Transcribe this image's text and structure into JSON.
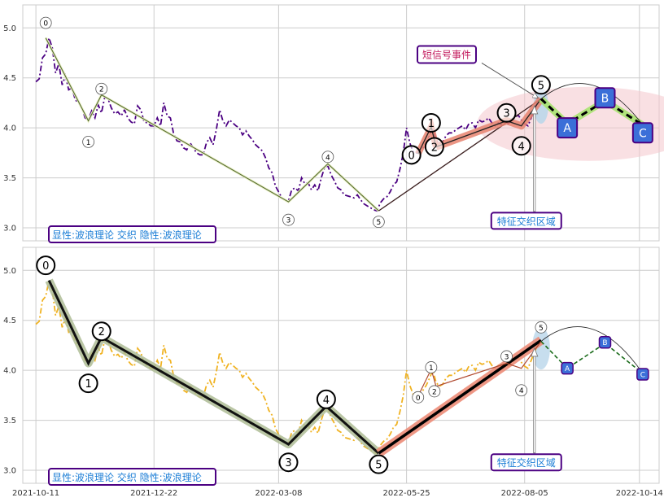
{
  "chart_data": [
    {
      "type": "line",
      "panel": "top",
      "ylim": [
        2.87,
        5.23
      ],
      "yticks": [
        "3.0",
        "3.5",
        "4.0",
        "4.5",
        "5.0"
      ],
      "ytick_values": [
        3.0,
        3.5,
        4.0,
        4.5,
        5.0
      ],
      "price_series": {
        "color": "#4b0082",
        "style": "dash-dot",
        "points": [
          [
            "2021-10-11",
            4.46
          ],
          [
            "2021-10-13",
            4.49
          ],
          [
            "2021-10-15",
            4.7
          ],
          [
            "2021-10-17",
            4.74
          ],
          [
            "2021-10-19",
            4.9
          ],
          [
            "2021-10-21",
            4.8
          ],
          [
            "2021-10-23",
            4.55
          ],
          [
            "2021-10-25",
            4.64
          ],
          [
            "2021-10-27",
            4.43
          ],
          [
            "2021-10-29",
            4.52
          ],
          [
            "2021-10-31",
            4.38
          ],
          [
            "2021-11-02",
            4.4
          ],
          [
            "2021-11-04",
            4.28
          ],
          [
            "2021-11-06",
            4.25
          ],
          [
            "2021-11-08",
            4.2
          ],
          [
            "2021-11-10",
            4.1
          ],
          [
            "2021-11-12",
            4.08
          ],
          [
            "2021-11-14",
            4.17
          ],
          [
            "2021-11-16",
            4.1
          ],
          [
            "2021-11-18",
            4.23
          ],
          [
            "2021-11-20",
            4.15
          ],
          [
            "2021-11-22",
            4.31
          ],
          [
            "2021-11-24",
            4.29
          ],
          [
            "2021-11-26",
            4.2
          ],
          [
            "2021-11-28",
            4.14
          ],
          [
            "2021-11-30",
            4.16
          ],
          [
            "2021-12-02",
            4.12
          ],
          [
            "2021-12-04",
            4.18
          ],
          [
            "2021-12-06",
            4.1
          ],
          [
            "2021-12-08",
            4.06
          ],
          [
            "2021-12-10",
            4.04
          ],
          [
            "2021-12-12",
            4.22
          ],
          [
            "2021-12-14",
            4.18
          ],
          [
            "2021-12-16",
            4.06
          ],
          [
            "2021-12-18",
            4.05
          ],
          [
            "2021-12-20",
            4.02
          ],
          [
            "2021-12-22",
            4.02
          ],
          [
            "2021-12-24",
            4.1
          ],
          [
            "2021-12-26",
            4.02
          ],
          [
            "2021-12-28",
            4.25
          ],
          [
            "2021-12-30",
            4.12
          ],
          [
            "2022-01-01",
            4.1
          ],
          [
            "2022-01-03",
            3.94
          ],
          [
            "2022-01-05",
            3.87
          ],
          [
            "2022-01-07",
            3.86
          ],
          [
            "2022-01-09",
            3.8
          ],
          [
            "2022-01-11",
            3.78
          ],
          [
            "2022-01-13",
            3.85
          ],
          [
            "2022-01-15",
            3.8
          ],
          [
            "2022-01-17",
            3.75
          ],
          [
            "2022-01-19",
            3.73
          ],
          [
            "2022-01-21",
            3.73
          ],
          [
            "2022-01-23",
            3.85
          ],
          [
            "2022-01-25",
            3.9
          ],
          [
            "2022-01-27",
            3.83
          ],
          [
            "2022-01-29",
            3.98
          ],
          [
            "2022-01-31",
            4.18
          ],
          [
            "2022-02-02",
            4.07
          ],
          [
            "2022-02-04",
            4.02
          ],
          [
            "2022-02-06",
            4.08
          ],
          [
            "2022-02-08",
            4.05
          ],
          [
            "2022-02-10",
            4.02
          ],
          [
            "2022-02-12",
            4.0
          ],
          [
            "2022-02-14",
            3.93
          ],
          [
            "2022-02-16",
            3.97
          ],
          [
            "2022-02-18",
            3.92
          ],
          [
            "2022-02-20",
            3.88
          ],
          [
            "2022-02-22",
            3.83
          ],
          [
            "2022-02-24",
            3.8
          ],
          [
            "2022-02-26",
            3.77
          ],
          [
            "2022-02-28",
            3.7
          ],
          [
            "2022-03-02",
            3.6
          ],
          [
            "2022-03-04",
            3.55
          ],
          [
            "2022-03-06",
            3.42
          ],
          [
            "2022-03-08",
            3.36
          ],
          [
            "2022-03-10",
            3.3
          ],
          [
            "2022-03-12",
            3.28
          ],
          [
            "2022-03-14",
            3.27
          ],
          [
            "2022-03-16",
            3.38
          ],
          [
            "2022-03-18",
            3.4
          ],
          [
            "2022-03-20",
            3.37
          ],
          [
            "2022-03-22",
            3.5
          ],
          [
            "2022-03-24",
            3.44
          ],
          [
            "2022-03-26",
            3.45
          ],
          [
            "2022-03-28",
            3.38
          ],
          [
            "2022-03-30",
            3.43
          ],
          [
            "2022-04-01",
            3.37
          ],
          [
            "2022-04-03",
            3.5
          ],
          [
            "2022-04-05",
            3.6
          ],
          [
            "2022-04-07",
            3.62
          ],
          [
            "2022-04-09",
            3.53
          ],
          [
            "2022-04-11",
            3.47
          ],
          [
            "2022-04-13",
            3.4
          ],
          [
            "2022-04-15",
            3.38
          ],
          [
            "2022-04-17",
            3.33
          ],
          [
            "2022-04-19",
            3.32
          ],
          [
            "2022-04-21",
            3.31
          ],
          [
            "2022-04-23",
            3.3
          ],
          [
            "2022-04-25",
            3.33
          ],
          [
            "2022-04-27",
            3.28
          ],
          [
            "2022-04-29",
            3.24
          ],
          [
            "2022-05-01",
            3.22
          ],
          [
            "2022-05-03",
            3.2
          ],
          [
            "2022-05-05",
            3.18
          ],
          [
            "2022-05-07",
            3.17
          ],
          [
            "2022-05-09",
            3.25
          ],
          [
            "2022-05-11",
            3.29
          ],
          [
            "2022-05-13",
            3.31
          ],
          [
            "2022-05-15",
            3.36
          ],
          [
            "2022-05-17",
            3.43
          ],
          [
            "2022-05-19",
            3.46
          ],
          [
            "2022-05-21",
            3.59
          ],
          [
            "2022-05-23",
            3.75
          ],
          [
            "2022-05-25",
            4.0
          ],
          [
            "2022-05-27",
            3.85
          ],
          [
            "2022-05-29",
            3.76
          ],
          [
            "2022-05-31",
            3.75
          ],
          [
            "2022-06-02",
            3.78
          ],
          [
            "2022-06-04",
            3.8
          ],
          [
            "2022-06-06",
            3.85
          ],
          [
            "2022-06-08",
            3.92
          ],
          [
            "2022-06-10",
            4.0
          ],
          [
            "2022-06-12",
            3.88
          ],
          [
            "2022-06-14",
            3.84
          ],
          [
            "2022-06-16",
            3.86
          ],
          [
            "2022-06-18",
            3.92
          ],
          [
            "2022-06-20",
            3.95
          ],
          [
            "2022-06-22",
            3.95
          ],
          [
            "2022-06-24",
            3.98
          ],
          [
            "2022-06-26",
            4.0
          ],
          [
            "2022-06-28",
            4.02
          ],
          [
            "2022-06-30",
            3.98
          ],
          [
            "2022-07-02",
            4.04
          ],
          [
            "2022-07-04",
            4.05
          ],
          [
            "2022-07-06",
            4.0
          ],
          [
            "2022-07-08",
            4.08
          ],
          [
            "2022-07-10",
            4.06
          ],
          [
            "2022-07-12",
            4.07
          ],
          [
            "2022-07-14",
            4.1
          ],
          [
            "2022-07-16",
            4.05
          ],
          [
            "2022-07-18",
            4.02
          ],
          [
            "2022-07-20",
            4.05
          ],
          [
            "2022-07-22",
            4.03
          ],
          [
            "2022-07-24",
            4.06
          ],
          [
            "2022-07-26",
            4.04
          ],
          [
            "2022-07-28",
            4.08
          ],
          [
            "2022-07-30",
            4.1
          ],
          [
            "2022-08-01",
            4.13
          ],
          [
            "2022-08-03",
            4.08
          ],
          [
            "2022-08-05",
            4.04
          ],
          [
            "2022-08-07",
            4.02
          ],
          [
            "2022-08-09",
            4.1
          ],
          [
            "2022-08-11",
            4.18
          ],
          [
            "2022-08-13",
            4.26
          ],
          [
            "2022-08-15",
            4.29
          ]
        ]
      },
      "wave_line": {
        "color": "#556b2f",
        "points": [
          [
            "2021-10-17",
            4.9
          ],
          [
            "2021-11-12",
            4.07
          ],
          [
            "2021-11-20",
            4.33
          ],
          [
            "2022-03-14",
            3.26
          ],
          [
            "2022-04-07",
            3.64
          ],
          [
            "2022-05-08",
            3.17
          ]
        ]
      },
      "wave_labels": [
        {
          "text": "0",
          "x": "2021-10-17",
          "y": 5.05,
          "size": "small"
        },
        {
          "text": "1",
          "x": "2021-11-12",
          "y": 3.86,
          "size": "small"
        },
        {
          "text": "2",
          "x": "2021-11-20",
          "y": 4.39,
          "size": "small"
        },
        {
          "text": "3",
          "x": "2022-03-14",
          "y": 3.08,
          "size": "small"
        },
        {
          "text": "4",
          "x": "2022-04-07",
          "y": 3.71,
          "size": "small"
        },
        {
          "text": "5",
          "x": "2022-05-08",
          "y": 3.06,
          "size": "small"
        }
      ],
      "short_waves": {
        "points": [
          [
            "2022-06-01",
            3.74
          ],
          [
            "2022-06-09",
            4.01
          ],
          [
            "2022-06-12",
            3.81
          ],
          [
            "2022-07-25",
            4.07
          ],
          [
            "2022-08-03",
            4.02
          ],
          [
            "2022-08-15",
            4.29
          ]
        ],
        "labels": [
          {
            "text": "0",
            "x": "2022-05-28",
            "y": 3.73
          },
          {
            "text": "1",
            "x": "2022-06-09",
            "y": 4.05
          },
          {
            "text": "2",
            "x": "2022-06-11",
            "y": 3.81
          },
          {
            "text": "3",
            "x": "2022-07-25",
            "y": 4.15
          },
          {
            "text": "4",
            "x": "2022-08-03",
            "y": 3.82
          },
          {
            "text": "5",
            "x": "2022-08-15",
            "y": 4.43
          }
        ]
      },
      "projection": {
        "points": [
          [
            "2022-08-15",
            4.29
          ],
          [
            "2022-08-31",
            4.04
          ],
          [
            "2022-09-23",
            4.27
          ],
          [
            "2022-10-16",
            4.03
          ]
        ],
        "labels": [
          {
            "text": "A",
            "x": "2022-08-31",
            "y": 4.0
          },
          {
            "text": "B",
            "x": "2022-09-23",
            "y": 4.3
          },
          {
            "text": "C",
            "x": "2022-10-16",
            "y": 3.95
          }
        ]
      },
      "zone_ellipse": {
        "cx": "2022-09-13",
        "cy": 4.04,
        "rx_days": 68,
        "ry": 0.37
      },
      "annotations": {
        "event_text": "短信号事件",
        "event_anchor": {
          "x": "2022-06-18",
          "y": 4.73
        },
        "zone_text": "特征交织区域",
        "zone_anchor": {
          "x": "2022-08-07",
          "y": 3.07
        },
        "legend_text": "显性:波浪理论 交织 隐性:波浪理论"
      }
    },
    {
      "type": "line",
      "panel": "bottom",
      "ylim": [
        2.87,
        5.23
      ],
      "yticks": [
        "3.0",
        "3.5",
        "4.0",
        "4.5",
        "5.0"
      ],
      "ytick_values": [
        3.0,
        3.5,
        4.0,
        4.5,
        5.0
      ],
      "price_series": {
        "color": "#f0b323",
        "style": "dash-dot",
        "same_as_top": true
      },
      "wave_line": {
        "color": "#8fa97a",
        "points": [
          [
            "2021-10-19",
            4.9
          ],
          [
            "2021-11-12",
            4.07
          ],
          [
            "2021-11-20",
            4.33
          ],
          [
            "2022-03-14",
            3.26
          ],
          [
            "2022-04-06",
            3.64
          ],
          [
            "2022-05-08",
            3.17
          ]
        ]
      },
      "wave_labels": [
        {
          "text": "0",
          "x": "2021-10-17",
          "y": 5.05,
          "size": "large"
        },
        {
          "text": "1",
          "x": "2021-11-12",
          "y": 3.87,
          "size": "large"
        },
        {
          "text": "2",
          "x": "2021-11-20",
          "y": 4.39,
          "size": "large"
        },
        {
          "text": "3",
          "x": "2022-03-14",
          "y": 3.08,
          "size": "large"
        },
        {
          "text": "4",
          "x": "2022-04-06",
          "y": 3.71,
          "size": "large"
        },
        {
          "text": "5",
          "x": "2022-05-08",
          "y": 3.06,
          "size": "large"
        }
      ],
      "trend_line": {
        "points": [
          [
            "2022-05-08",
            3.17
          ],
          [
            "2022-08-15",
            4.3
          ]
        ]
      },
      "short_waves": {
        "points": [
          [
            "2022-06-01",
            3.74
          ],
          [
            "2022-06-09",
            4.01
          ],
          [
            "2022-06-12",
            3.84
          ],
          [
            "2022-07-25",
            4.07
          ],
          [
            "2022-08-03",
            4.02
          ],
          [
            "2022-08-15",
            4.29
          ]
        ],
        "labels": [
          {
            "text": "0",
            "x": "2022-06-01",
            "y": 3.73
          },
          {
            "text": "1",
            "x": "2022-06-09",
            "y": 4.03
          },
          {
            "text": "2",
            "x": "2022-06-11",
            "y": 3.79
          },
          {
            "text": "3",
            "x": "2022-07-25",
            "y": 4.14
          },
          {
            "text": "4",
            "x": "2022-08-03",
            "y": 3.8
          },
          {
            "text": "5",
            "x": "2022-08-15",
            "y": 4.43
          }
        ]
      },
      "projection": {
        "points": [
          [
            "2022-08-15",
            4.29
          ],
          [
            "2022-08-31",
            4.02
          ],
          [
            "2022-09-23",
            4.27
          ],
          [
            "2022-10-16",
            3.97
          ]
        ],
        "labels": [
          {
            "text": "A",
            "x": "2022-08-31",
            "y": 4.02
          },
          {
            "text": "B",
            "x": "2022-09-23",
            "y": 4.28
          },
          {
            "text": "C",
            "x": "2022-10-16",
            "y": 3.96
          }
        ]
      },
      "annotations": {
        "zone_text": "特征交织区域",
        "zone_anchor": {
          "x": "2022-08-07",
          "y": 3.08
        },
        "legend_text": "显性:波浪理论 交织 隐性:波浪理论"
      }
    }
  ],
  "x_axis": {
    "range": [
      "2021-10-03",
      "2022-10-26"
    ],
    "ticks": [
      "2021-10-11",
      "2021-12-22",
      "2022-03-08",
      "2022-05-25",
      "2022-08-05",
      "2022-10-14"
    ]
  },
  "colors": {
    "grid": "#cccccc",
    "panel_border": "#cccccc",
    "label_border": "#4b0082",
    "label_text_blue": "#1c7ed6",
    "label_text_red": "#c2185b",
    "box_fill": "#3b6fd8",
    "zone_fill": "#f4c6cc",
    "short_wave_fill": "#e8826e",
    "projection_highlight": "#a7e36f"
  }
}
